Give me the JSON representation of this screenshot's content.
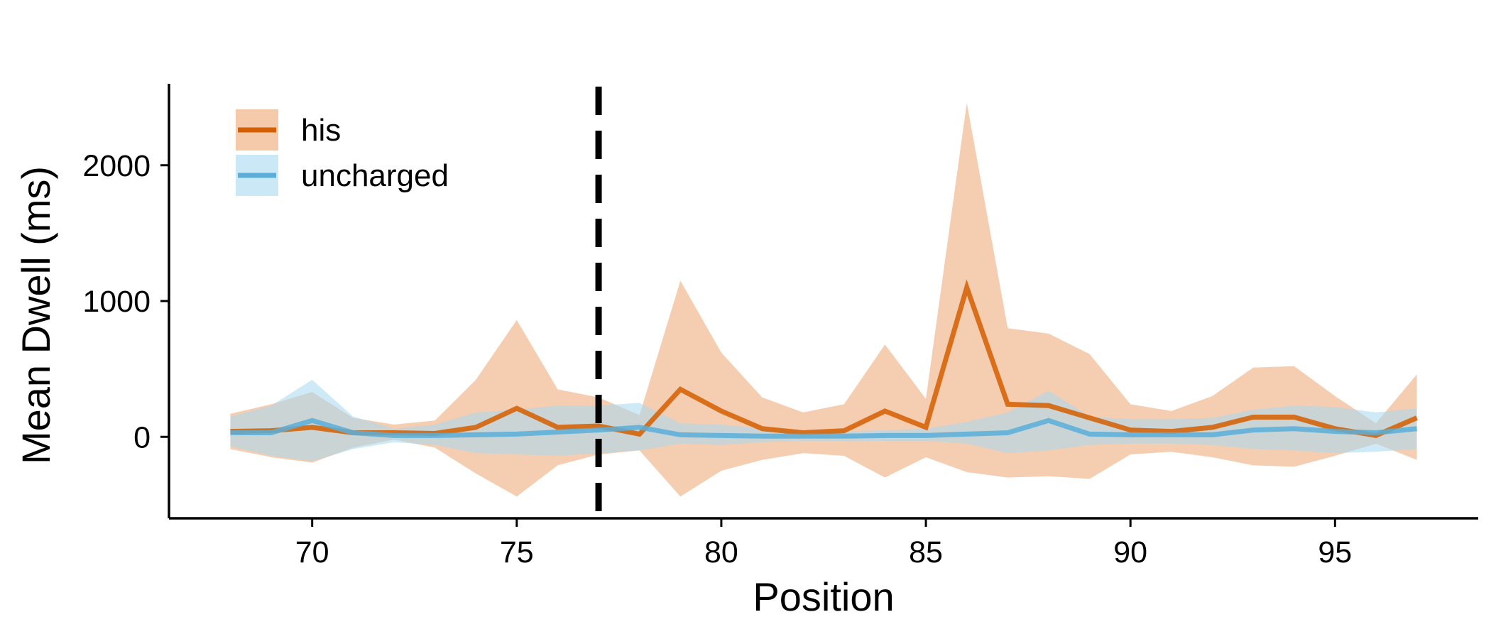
{
  "chart_data": {
    "type": "line",
    "title": "",
    "xlabel": "Position",
    "ylabel": "Mean Dwell (ms)",
    "xlim": [
      66.5,
      98.5
    ],
    "ylim": [
      -600,
      2600
    ],
    "xticks": [
      70,
      75,
      80,
      85,
      90,
      95
    ],
    "yticks": [
      0,
      1000,
      2000
    ],
    "grid": false,
    "legend_position": "top-left",
    "reference_line": {
      "x": 77,
      "style": "dashed",
      "color": "#000000"
    },
    "x": [
      68,
      69,
      70,
      71,
      72,
      73,
      74,
      75,
      76,
      77,
      78,
      79,
      80,
      81,
      82,
      83,
      84,
      85,
      86,
      87,
      88,
      89,
      90,
      91,
      92,
      93,
      94,
      95,
      96,
      97
    ],
    "series": [
      {
        "name": "his",
        "color": "#d55e00",
        "band_color": "#eda673",
        "values": [
          40,
          45,
          70,
          30,
          30,
          25,
          70,
          210,
          70,
          80,
          20,
          350,
          190,
          60,
          30,
          45,
          190,
          70,
          1100,
          240,
          230,
          140,
          50,
          40,
          70,
          145,
          145,
          60,
          10,
          140
        ],
        "upper": [
          170,
          240,
          330,
          140,
          90,
          120,
          420,
          860,
          350,
          290,
          160,
          1150,
          620,
          290,
          180,
          240,
          680,
          280,
          2460,
          800,
          760,
          610,
          240,
          190,
          300,
          510,
          520,
          300,
          100,
          460
        ],
        "lower": [
          -90,
          -150,
          -190,
          -80,
          -20,
          -80,
          -270,
          -440,
          -210,
          -130,
          -100,
          -440,
          -250,
          -170,
          -120,
          -140,
          -300,
          -150,
          -260,
          -300,
          -290,
          -310,
          -130,
          -110,
          -150,
          -210,
          -220,
          -140,
          -50,
          -170
        ]
      },
      {
        "name": "uncharged",
        "color": "#5aaed9",
        "band_color": "#a8d8f0",
        "values": [
          30,
          30,
          120,
          30,
          10,
          10,
          15,
          20,
          35,
          50,
          70,
          15,
          10,
          5,
          5,
          5,
          10,
          10,
          20,
          30,
          120,
          20,
          15,
          15,
          15,
          50,
          60,
          40,
          30,
          60
        ],
        "upper": [
          150,
          230,
          420,
          150,
          60,
          90,
          180,
          200,
          230,
          230,
          250,
          100,
          90,
          60,
          40,
          40,
          50,
          60,
          110,
          180,
          340,
          150,
          130,
          130,
          140,
          200,
          230,
          220,
          180,
          210
        ],
        "lower": [
          -70,
          -140,
          -180,
          -90,
          -40,
          -60,
          -120,
          -130,
          -140,
          -120,
          -100,
          -50,
          -60,
          -40,
          -30,
          -30,
          -30,
          -30,
          -50,
          -120,
          -100,
          -60,
          -50,
          -50,
          -60,
          -90,
          -100,
          -120,
          -110,
          -90
        ]
      }
    ]
  }
}
